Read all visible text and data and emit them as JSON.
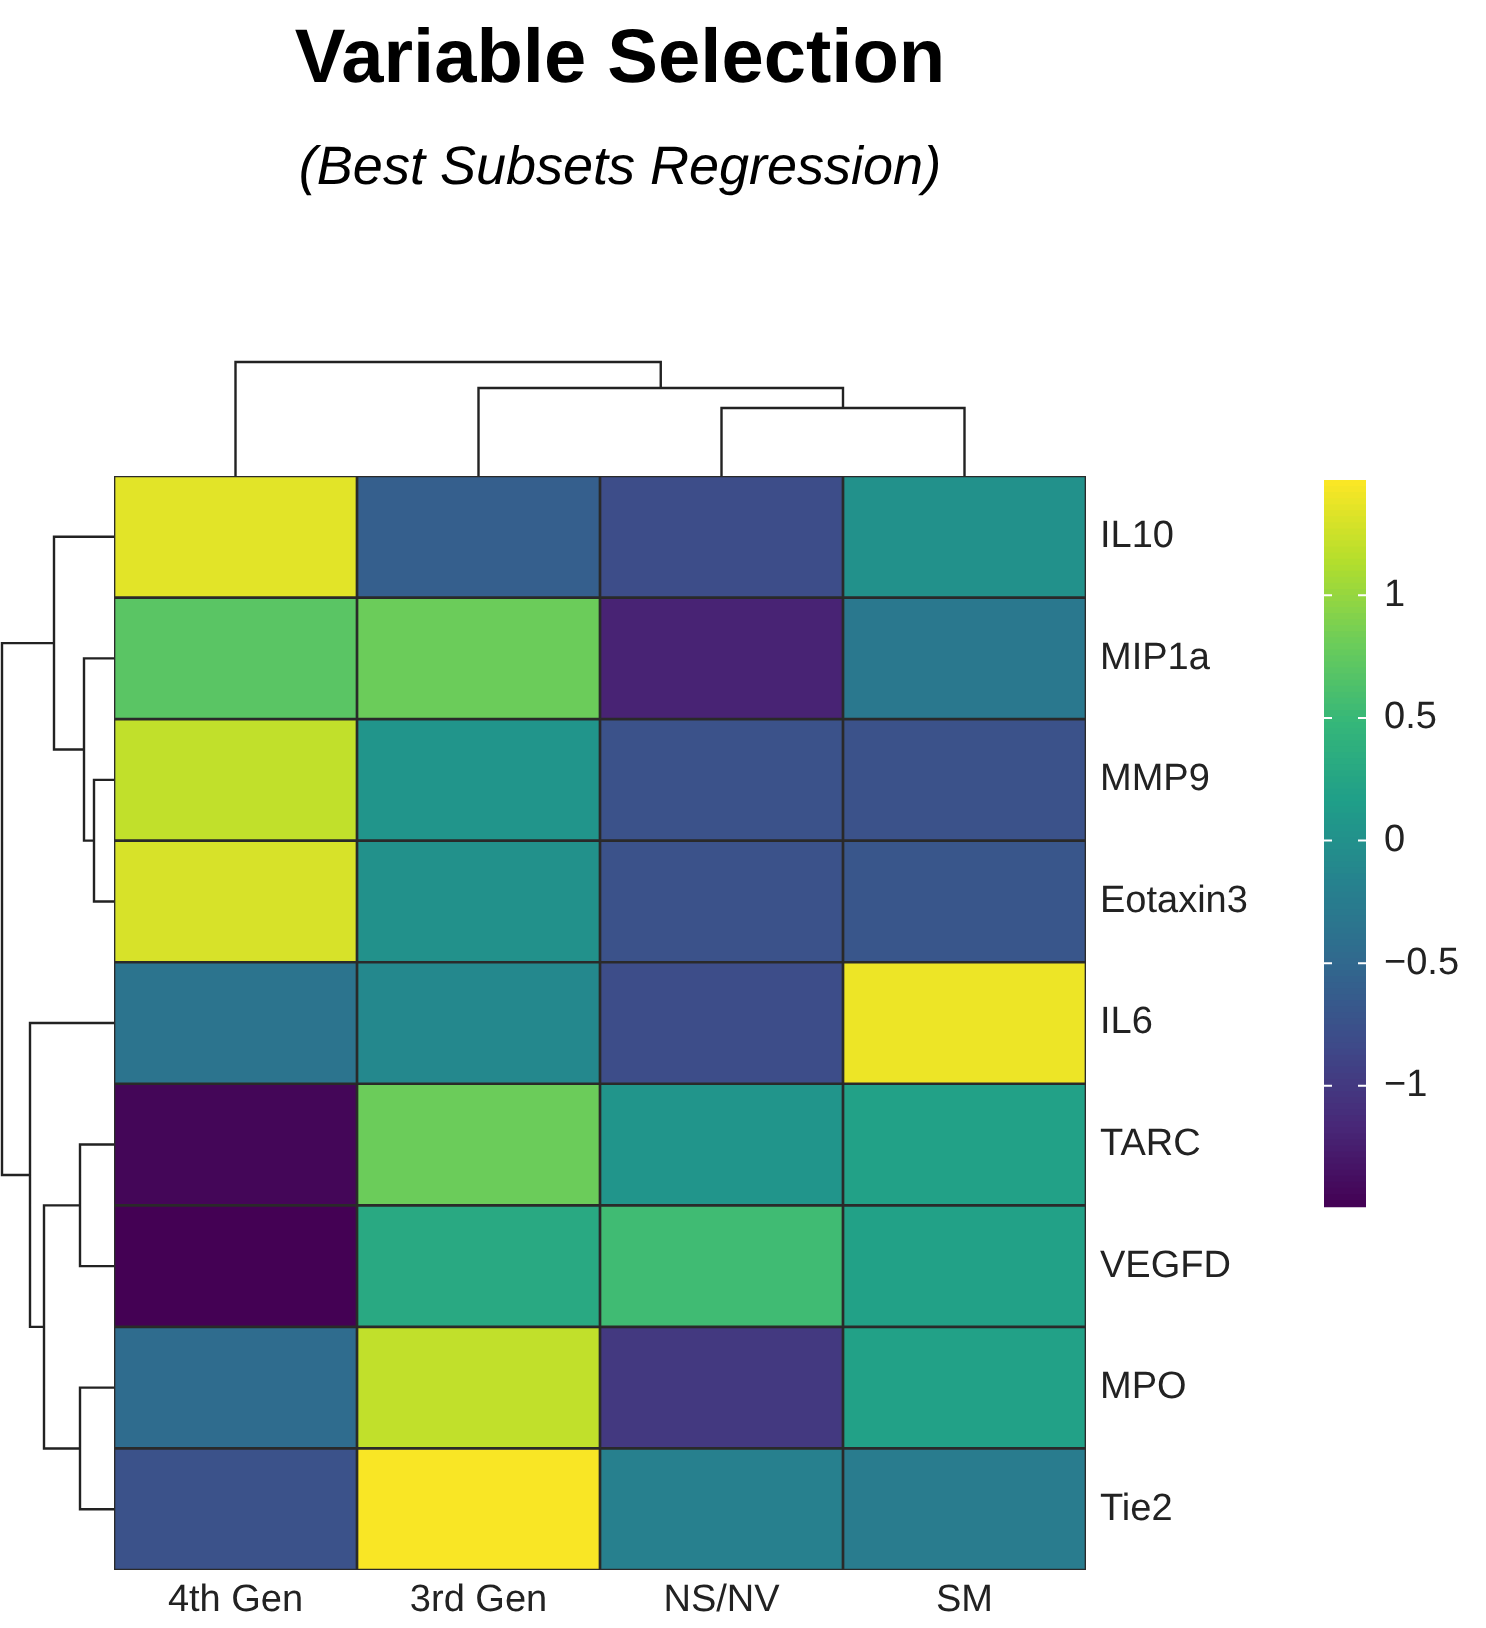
{
  "chart_data": {
    "type": "heatmap",
    "title": "Variable Selection",
    "subtitle": "(Best Subsets Regression)",
    "categories": [
      "4th Gen",
      "3rd Gen",
      "NS/NV",
      "SM"
    ],
    "y_categories": [
      "IL10",
      "MIP1a",
      "MMP9",
      "Eotaxin3",
      "IL6",
      "TARC",
      "VEGFD",
      "MPO",
      "Tie2"
    ],
    "cells": [
      [
        1.35,
        -0.6,
        -0.8,
        0.0
      ],
      [
        0.7,
        0.8,
        -1.2,
        -0.3
      ],
      [
        1.2,
        0.05,
        -0.75,
        -0.75
      ],
      [
        1.3,
        0.0,
        -0.75,
        -0.7
      ],
      [
        -0.35,
        -0.1,
        -0.8,
        1.4
      ],
      [
        -1.45,
        0.8,
        0.05,
        0.2
      ],
      [
        -1.49,
        0.3,
        0.55,
        0.2
      ],
      [
        -0.45,
        1.2,
        -1.0,
        0.2
      ],
      [
        -0.75,
        1.45,
        -0.2,
        -0.25
      ]
    ],
    "clim": [
      -1.49,
      1.47
    ],
    "cticks": [
      {
        "value": -1,
        "label": "−1"
      },
      {
        "value": -0.5,
        "label": "−0.5"
      },
      0,
      0.5,
      1
    ]
  }
}
